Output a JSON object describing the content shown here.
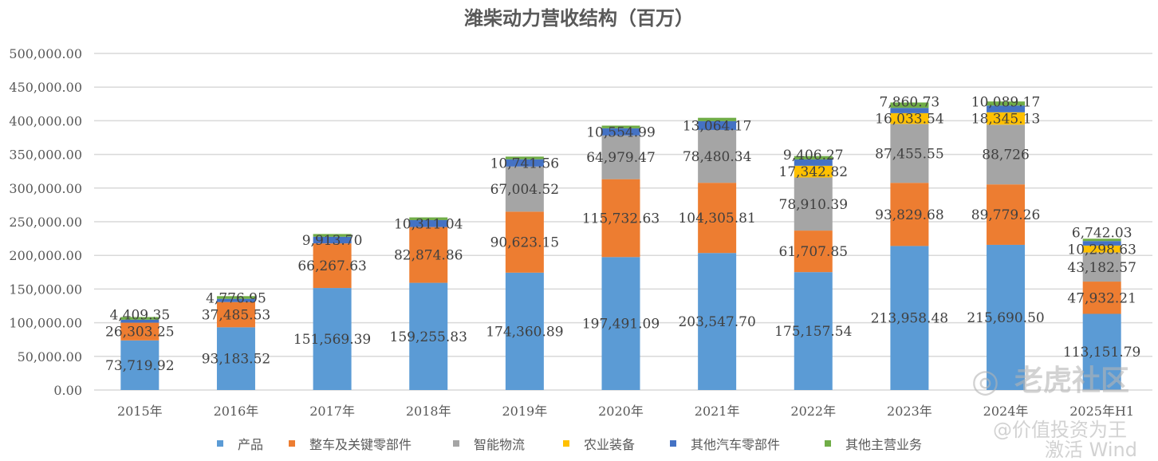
{
  "chart_data": {
    "type": "bar",
    "stacked": true,
    "title": "潍柴动力营收结构（百万）",
    "xlabel": "",
    "ylabel": "",
    "ylim": [
      0,
      500000
    ],
    "yticks": [
      "0.00",
      "50,000.00",
      "100,000.00",
      "150,000.00",
      "200,000.00",
      "250,000.00",
      "300,000.00",
      "350,000.00",
      "400,000.00",
      "450,000.00",
      "500,000.00"
    ],
    "grid": true,
    "legend_position": "bottom",
    "categories": [
      "2015年",
      "2016年",
      "2017年",
      "2018年",
      "2019年",
      "2020年",
      "2021年",
      "2022年",
      "2023年",
      "2024年",
      "2025年H1"
    ],
    "series": [
      {
        "name": "产品",
        "color": "#5B9BD5",
        "values": [
          73719.92,
          93183.52,
          151569.39,
          159255.83,
          174360.89,
          197491.09,
          203547.7,
          175157.54,
          213958.48,
          215690.5,
          113151.79
        ],
        "labels": [
          "73,719.92",
          "93,183.52",
          "151,569.39",
          "159,255.83",
          "174,360.89",
          "197,491.09",
          "203,547.70",
          "175,157.54",
          "213,958.48",
          "215,690.50",
          "113,151.79"
        ]
      },
      {
        "name": "整车及关键零部件",
        "color": "#ED7D31",
        "values": [
          26303.25,
          37485.53,
          66267.63,
          82874.86,
          90623.15,
          115732.63,
          104305.81,
          61707.85,
          93829.68,
          89779.26,
          47932.21
        ],
        "labels": [
          "26,303.25",
          "37,485.53",
          "66,267.63",
          "82,874.86",
          "90,623.15",
          "115,732.63",
          "104,305.81",
          "61,707.85",
          "93,829.68",
          "89,779.26",
          "47,932.21"
        ]
      },
      {
        "name": "智能物流",
        "color": "#A5A5A5",
        "values": [
          0,
          0,
          0,
          0,
          67004.52,
          64979.47,
          78480.34,
          78910.39,
          87455.55,
          88726,
          43182.57
        ],
        "labels": [
          null,
          null,
          null,
          null,
          "67,004.52",
          "64,979.47",
          "78,480.34",
          "78,910.39",
          "87,455.55",
          "88,726",
          "43,182.57"
        ]
      },
      {
        "name": "农业装备",
        "color": "#FFC000",
        "values": [
          0,
          0,
          0,
          0,
          0,
          0,
          0,
          17342.82,
          16033.54,
          18345.13,
          10298.63
        ],
        "labels": [
          null,
          null,
          null,
          null,
          null,
          null,
          null,
          "17,342.82",
          "16,033.54",
          "18,345.13",
          "10,298.63"
        ]
      },
      {
        "name": "其他汽车零部件",
        "color": "#4472C4",
        "values": [
          4409.35,
          4776.95,
          9913.7,
          10311.04,
          10741.56,
          10554.99,
          13064.17,
          9406.27,
          7860.73,
          10089.17,
          6742.03
        ],
        "labels": [
          "4,409.35",
          "4,776.95",
          "9,913.70",
          "10,311.04",
          "10,741.56",
          "10,554.99",
          "13,064.17",
          "9,406.27",
          "7,860.73",
          "10,089.17",
          "6,742.03"
        ]
      },
      {
        "name": "其他主营业务",
        "color": "#70AD47",
        "values": [
          4000,
          4000,
          4000,
          4000,
          4000,
          4000,
          5000,
          5000,
          8000,
          6000,
          3500
        ],
        "labels": [
          null,
          null,
          null,
          null,
          null,
          null,
          null,
          null,
          null,
          null,
          null
        ]
      }
    ]
  },
  "watermarks": [
    "老虎社区",
    "@价值投资为王",
    "激活 Wind"
  ]
}
